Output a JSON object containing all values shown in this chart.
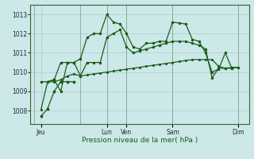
{
  "background_color": "#cce8e8",
  "grid_color": "#aad0d0",
  "line_color": "#1a5c1a",
  "xlabel": "Pression niveau de la mer( hPa )",
  "ylim": [
    1007.3,
    1013.5
  ],
  "yticks": [
    1008,
    1009,
    1010,
    1011,
    1012,
    1013
  ],
  "xlim": [
    -0.3,
    16.3
  ],
  "xtick_positions": [
    0.5,
    5.5,
    7.0,
    10.5,
    15.5
  ],
  "xtick_labels": [
    "Jeu",
    "Lun",
    "Ven",
    "Sam",
    "Dim"
  ],
  "major_vlines": [
    0,
    3.5,
    5.5,
    7.0,
    10.5,
    15.5
  ],
  "series1_x": [
    0.5,
    1.0,
    1.5,
    2.0,
    2.5,
    3.0,
    3.5,
    4.0,
    4.5,
    5.0,
    5.5,
    6.0,
    6.5,
    7.0,
    7.5,
    8.0,
    8.5,
    9.0,
    9.5,
    10.0,
    10.5,
    11.0,
    11.5,
    12.0,
    12.5,
    13.0,
    13.5,
    14.0,
    14.5,
    15.0,
    15.5
  ],
  "series1_y": [
    1008.05,
    1009.5,
    1009.5,
    1009.6,
    1009.8,
    1009.9,
    1009.8,
    1009.85,
    1009.9,
    1009.95,
    1010.0,
    1010.05,
    1010.1,
    1010.15,
    1010.2,
    1010.25,
    1010.3,
    1010.35,
    1010.4,
    1010.45,
    1010.5,
    1010.55,
    1010.6,
    1010.65,
    1010.65,
    1010.65,
    1010.65,
    1010.3,
    1010.2,
    1010.2,
    1010.25
  ],
  "series2_x": [
    0.5,
    1.0,
    1.5,
    2.0,
    2.5,
    3.0,
    3.5,
    4.0,
    4.5,
    5.0,
    5.5,
    6.0,
    6.5,
    7.0,
    7.5,
    8.0,
    8.5,
    9.0,
    9.5,
    10.0,
    10.5,
    11.0,
    11.5,
    12.0,
    12.5,
    13.0,
    13.5,
    14.0,
    14.5,
    15.0,
    15.5
  ],
  "series2_y": [
    1009.5,
    1009.5,
    1009.6,
    1010.5,
    1010.5,
    1010.5,
    1009.8,
    1010.5,
    1010.5,
    1010.5,
    1011.8,
    1012.0,
    1012.2,
    1011.3,
    1011.0,
    1011.1,
    1011.2,
    1011.3,
    1011.4,
    1011.5,
    1011.6,
    1011.6,
    1011.6,
    1011.5,
    1011.4,
    1011.2,
    1009.7,
    1010.2,
    1010.2,
    1010.25,
    1010.25
  ],
  "series3_x": [
    1.0,
    1.5,
    2.0,
    2.5,
    3.0,
    3.5,
    4.0,
    4.5,
    5.0,
    5.5,
    6.0,
    6.5,
    7.0,
    7.5,
    8.0,
    8.5,
    9.0,
    9.5,
    10.0,
    10.5,
    11.0,
    11.5,
    12.0,
    12.5,
    13.0,
    13.5,
    14.0,
    14.5,
    15.0
  ],
  "series3_y": [
    1009.5,
    1009.6,
    1009.0,
    1010.5,
    1010.5,
    1010.7,
    1011.8,
    1012.0,
    1012.0,
    1013.0,
    1012.6,
    1012.5,
    1012.0,
    1011.3,
    1011.2,
    1011.5,
    1011.5,
    1011.6,
    1011.6,
    1012.6,
    1012.55,
    1012.5,
    1011.7,
    1011.6,
    1011.0,
    1010.0,
    1010.15,
    1011.0,
    1010.2
  ],
  "series4_x": [
    0.5,
    1.0,
    1.5,
    2.0,
    2.5,
    3.0
  ],
  "series4_y": [
    1007.7,
    1008.1,
    1009.0,
    1009.5,
    1009.5,
    1009.5
  ]
}
